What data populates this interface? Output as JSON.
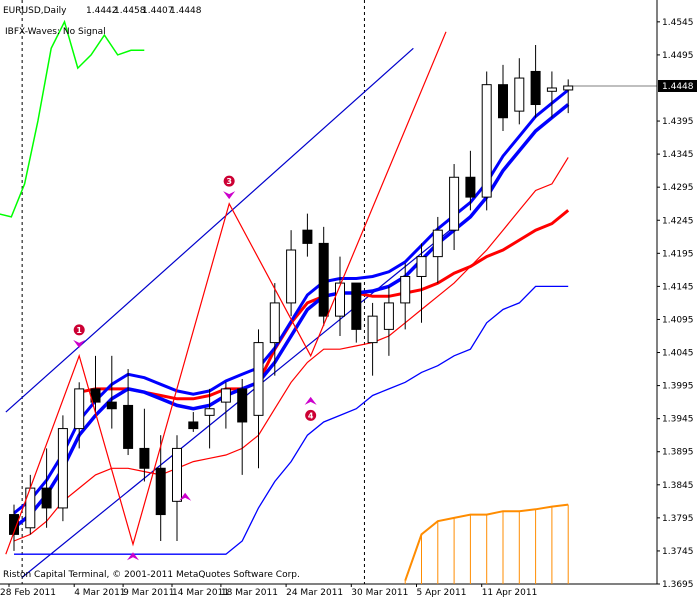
{
  "chart_data": {
    "type": "candlestick",
    "header": {
      "symbol_line": "EURUSD,Daily",
      "ohlc": [
        "1.4442",
        "1.4458",
        "1.4407",
        "1.4448"
      ],
      "indicator_line": "IBFX-Waves: No Signal"
    },
    "copyright": "Riston Capital Terminal, © 2001-2011 MetaQuotes Software Corp.",
    "y_ticks": [
      "1.4545",
      "1.4495",
      "1.4448",
      "1.4395",
      "1.4345",
      "1.4295",
      "1.4245",
      "1.4195",
      "1.4145",
      "1.4095",
      "1.4045",
      "1.3995",
      "1.3945",
      "1.3895",
      "1.3845",
      "1.3795",
      "1.3745",
      "1.3695"
    ],
    "y_tick_values": [
      1.4545,
      1.4495,
      1.4448,
      1.4395,
      1.4345,
      1.4295,
      1.4245,
      1.4195,
      1.4145,
      1.4095,
      1.4045,
      1.3995,
      1.3945,
      1.3895,
      1.3845,
      1.3795,
      1.3745,
      1.3695
    ],
    "current_price": "1.4448",
    "x_labels": [
      "28 Feb 2011",
      "4 Mar 2011",
      "9 Mar 2011",
      "14 Mar 2011",
      "18 Mar 2011",
      "24 Mar 2011",
      "30 Mar 2011",
      "5 Apr 2011",
      "11 Apr 2011"
    ],
    "x_label_bars": [
      0,
      4,
      7,
      10,
      13,
      17,
      21,
      25,
      29
    ],
    "ylim": [
      1.3695,
      1.4575
    ],
    "bar_count": 35,
    "candles": [
      [
        1.38,
        1.3815,
        1.3745,
        1.377
      ],
      [
        1.378,
        1.386,
        1.377,
        1.384
      ],
      [
        1.384,
        1.39,
        1.378,
        1.381
      ],
      [
        1.381,
        1.395,
        1.379,
        1.393
      ],
      [
        1.393,
        1.4,
        1.39,
        1.399
      ],
      [
        1.399,
        1.404,
        1.395,
        1.397
      ],
      [
        1.397,
        1.404,
        1.393,
        1.396
      ],
      [
        1.3965,
        1.402,
        1.389,
        1.39
      ],
      [
        1.39,
        1.396,
        1.385,
        1.387
      ],
      [
        1.387,
        1.392,
        1.376,
        1.38
      ],
      [
        1.382,
        1.392,
        1.376,
        1.39
      ],
      [
        1.394,
        1.3955,
        1.3925,
        1.393
      ],
      [
        1.395,
        1.399,
        1.39,
        1.396
      ],
      [
        1.397,
        1.4,
        1.393,
        1.399
      ],
      [
        1.399,
        1.4005,
        1.386,
        1.394
      ],
      [
        1.395,
        1.408,
        1.387,
        1.406
      ],
      [
        1.406,
        1.415,
        1.401,
        1.412
      ],
      [
        1.412,
        1.423,
        1.41,
        1.42
      ],
      [
        1.423,
        1.4255,
        1.419,
        1.421
      ],
      [
        1.421,
        1.4235,
        1.4085,
        1.41
      ],
      [
        1.41,
        1.419,
        1.407,
        1.415
      ],
      [
        1.415,
        1.415,
        1.406,
        1.408
      ],
      [
        1.406,
        1.412,
        1.401,
        1.41
      ],
      [
        1.408,
        1.4145,
        1.404,
        1.412
      ],
      [
        1.412,
        1.418,
        1.408,
        1.416
      ],
      [
        1.416,
        1.421,
        1.409,
        1.419
      ],
      [
        1.419,
        1.425,
        1.415,
        1.423
      ],
      [
        1.423,
        1.433,
        1.42,
        1.431
      ],
      [
        1.431,
        1.435,
        1.426,
        1.428
      ],
      [
        1.428,
        1.447,
        1.426,
        1.445
      ],
      [
        1.445,
        1.448,
        1.438,
        1.44
      ],
      [
        1.441,
        1.449,
        1.439,
        1.446
      ],
      [
        1.447,
        1.451,
        1.44,
        1.442
      ],
      [
        1.444,
        1.447,
        1.44,
        1.4445
      ],
      [
        1.4442,
        1.4458,
        1.4407,
        1.4448
      ]
    ],
    "blue_ma": [
      1.378,
      1.38,
      1.383,
      1.387,
      1.392,
      1.395,
      1.3975,
      1.399,
      1.3985,
      1.3975,
      1.3965,
      1.396,
      1.3965,
      1.398,
      1.399,
      1.4,
      1.403,
      1.407,
      1.411,
      1.413,
      1.4135,
      1.4135,
      1.4138,
      1.4145,
      1.416,
      1.4185,
      1.421,
      1.423,
      1.425,
      1.428,
      1.432,
      1.435,
      1.438,
      1.44,
      1.442
    ],
    "red_line": [
      1.376,
      1.377,
      1.379,
      1.382,
      1.384,
      1.386,
      1.387,
      1.387,
      1.3865,
      1.386,
      1.387,
      1.388,
      1.3885,
      1.389,
      1.39,
      1.392,
      1.396,
      1.4,
      1.403,
      1.405,
      1.405,
      1.4055,
      1.406,
      1.407,
      1.409,
      1.411,
      1.413,
      1.415,
      1.4175,
      1.42,
      1.423,
      1.426,
      1.429,
      1.43,
      1.434
    ],
    "thick_red": [
      null,
      null,
      null,
      null,
      1.3985,
      1.399,
      1.399,
      1.399,
      1.3985,
      1.398,
      1.3975,
      1.3975,
      1.398,
      1.399,
      1.399,
      1.4,
      1.405,
      1.409,
      1.412,
      1.413,
      1.4135,
      1.4135,
      1.413,
      1.413,
      1.4135,
      1.414,
      1.415,
      1.4165,
      1.4175,
      1.419,
      1.42,
      1.4215,
      1.423,
      1.424,
      1.426
    ],
    "lower_band": [
      1.374,
      1.374,
      1.374,
      1.374,
      1.374,
      1.374,
      1.374,
      1.374,
      1.374,
      1.374,
      1.374,
      1.374,
      1.374,
      1.374,
      1.376,
      1.381,
      1.385,
      1.388,
      1.392,
      1.394,
      1.395,
      1.396,
      1.398,
      1.399,
      1.4,
      1.4015,
      1.4025,
      1.404,
      1.405,
      1.409,
      1.411,
      1.412,
      1.4145,
      1.4145,
      1.4145
    ],
    "green_line": [
      1.4255,
      1.425,
      1.43,
      1.4395,
      1.4505,
      1.4545,
      1.4475,
      1.4495,
      1.4525,
      1.4495,
      1.4502,
      1.4502
    ],
    "wave_line": [
      [
        -0.5,
        1.374
      ],
      [
        4,
        1.404
      ],
      [
        7.3,
        1.3755
      ],
      [
        13.2,
        1.427
      ],
      [
        18.2,
        1.404
      ],
      [
        26.5,
        1.453
      ]
    ],
    "channel_upper": [
      [
        -0.5,
        1.3955
      ],
      [
        24.5,
        1.4505
      ]
    ],
    "channel_lower": [
      [
        0.5,
        1.3705
      ],
      [
        27,
        1.4235
      ]
    ],
    "vlines_bars": [
      0.5,
      21.5
    ],
    "arrows": [
      {
        "bar": 4,
        "price": 1.4055,
        "dir": "down",
        "label": "1"
      },
      {
        "bar": 7.3,
        "price": 1.374,
        "dir": "up"
      },
      {
        "bar": 10.5,
        "price": 1.383,
        "dir": "up"
      },
      {
        "bar": 13.2,
        "price": 1.428,
        "dir": "down",
        "label": "3"
      },
      {
        "bar": 18.2,
        "price": 1.3975,
        "dir": "up"
      },
      {
        "bar": 18.2,
        "price": 1.395,
        "dir": "none",
        "label": "4"
      }
    ],
    "histogram": [
      null,
      null,
      null,
      null,
      null,
      null,
      null,
      null,
      null,
      null,
      null,
      null,
      null,
      null,
      null,
      null,
      null,
      null,
      null,
      null,
      null,
      null,
      null,
      null,
      1.37,
      1.377,
      1.379,
      1.3795,
      1.38,
      1.38,
      1.3805,
      1.3805,
      1.3808,
      1.3812,
      1.3815
    ],
    "colors": {
      "bull_body": "#ffffff",
      "bear_body": "#000000",
      "blue": "#0000ff",
      "red": "#ff0000",
      "green": "#00ff00",
      "navy": "#0000cc",
      "orange": "#ff8c00",
      "arrow": "#cc00cc",
      "marker": "#cc0033"
    }
  }
}
